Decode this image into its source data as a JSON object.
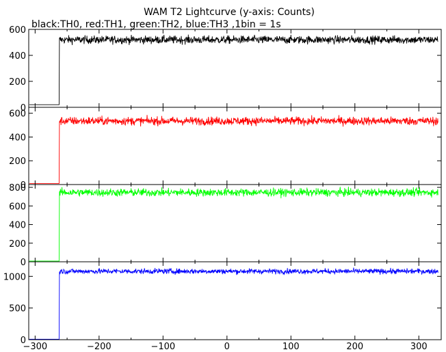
{
  "title": "WAM T2 Lightcurve (y-axis: Counts)",
  "subtitle": "black:TH0, red:TH1, green:TH2, blue:TH3 ,1bin = 1s",
  "chart_data": {
    "type": "line",
    "title": "WAM T2 Lightcurve (y-axis: Counts)",
    "subtitle": "black:TH0, red:TH1, green:TH2, blue:TH3 ,1bin = 1s",
    "xlabel": "",
    "ylabel": "",
    "xlim": [
      -310,
      335
    ],
    "xticks": [
      -300,
      -200,
      -100,
      0,
      100,
      200,
      300
    ],
    "grid": false,
    "step_time": -262,
    "panels": [
      {
        "name": "TH0",
        "color": "#000000",
        "ylim": [
          0,
          600
        ],
        "yticks": [
          0,
          200,
          400,
          600
        ],
        "pre_level": 20,
        "level": 520,
        "noise": 22
      },
      {
        "name": "TH1",
        "color": "#ff0000",
        "ylim": [
          0,
          650
        ],
        "yticks": [
          0,
          200,
          400,
          600
        ],
        "pre_level": 8,
        "level": 535,
        "noise": 25
      },
      {
        "name": "TH2",
        "color": "#00ff00",
        "ylim": [
          0,
          830
        ],
        "yticks": [
          0,
          200,
          400,
          600,
          800
        ],
        "pre_level": 8,
        "level": 745,
        "noise": 30
      },
      {
        "name": "TH3",
        "color": "#0000ff",
        "ylim": [
          0,
          1230
        ],
        "yticks": [
          0,
          500,
          1000
        ],
        "pre_level": 8,
        "level": 1080,
        "noise": 30
      }
    ]
  }
}
